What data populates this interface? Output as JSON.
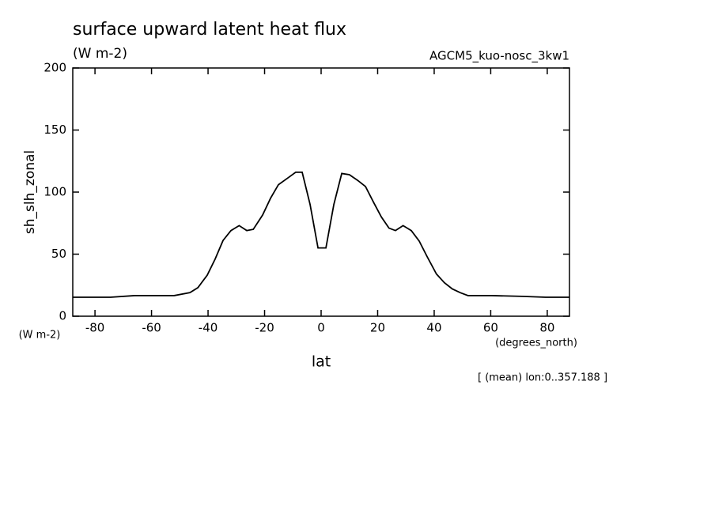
{
  "chart_data": {
    "type": "line",
    "title": "surface upward latent heat flux",
    "subtitle": "(W m-2)",
    "run_label": "AGCM5_kuo-nosc_3kw1",
    "y_label": "sh_slh_zonal",
    "y_unit": "(W m-2)",
    "x_label": "lat",
    "x_unit": "(degrees_north)",
    "annotation": "[ (mean) lon:0..357.188 ]",
    "x": [
      -87.86,
      -74.5,
      -66,
      -52,
      -46.4,
      -43.6,
      -40.3,
      -37.5,
      -34.7,
      -31.9,
      -29,
      -26.3,
      -24,
      -20.7,
      -17.9,
      -15.1,
      -11.7,
      -9,
      -6.7,
      -3.9,
      -1.1,
      1.7,
      4.5,
      7.3,
      10,
      12.9,
      15.7,
      18.5,
      21.3,
      24,
      26.3,
      29,
      31.9,
      34.7,
      37.5,
      40.8,
      43.6,
      46.4,
      49.2,
      52,
      60.4,
      71,
      79.4,
      87.86
    ],
    "series": [
      {
        "name": "sh_slh_zonal",
        "color": "#000000",
        "values": [
          15.3,
          15.3,
          16.6,
          16.6,
          19,
          23,
          33,
          46,
          61,
          69,
          73,
          69,
          70,
          81.5,
          95,
          106,
          111.5,
          116,
          116,
          90,
          55,
          55,
          90,
          115,
          114,
          109.5,
          104.5,
          92,
          80,
          71,
          69,
          73,
          69,
          60.5,
          48,
          34,
          27,
          22,
          19,
          16.6,
          16.6,
          16,
          15.3,
          15.3
        ]
      }
    ],
    "xlim": [
      -87.86,
      87.86
    ],
    "ylim": [
      0,
      200
    ],
    "xticks": [
      -80,
      -60,
      -40,
      -20,
      0,
      20,
      40,
      60,
      80
    ],
    "yticks": [
      0,
      50,
      100,
      150,
      200
    ]
  }
}
